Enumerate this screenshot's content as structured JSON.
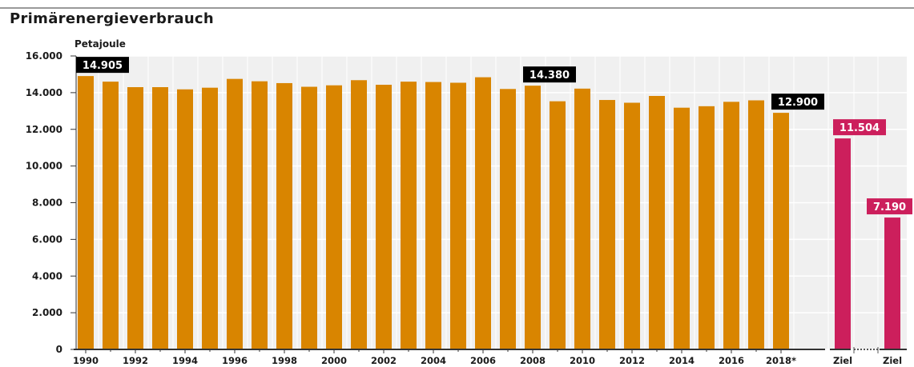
{
  "title": "Primärenergieverbrauch",
  "unit_label": "Petajoule",
  "colors": {
    "history": "#d98500",
    "target": "#cc1f5c",
    "callout_dark": "#000000",
    "grid": "#ffffff",
    "plot_bg": "#f0f0f0"
  },
  "chart_data": {
    "type": "bar",
    "ylabel": "Petajoule",
    "ylim": [
      0,
      16000
    ],
    "yticks": [
      "0",
      "2.000",
      "4.000",
      "6.000",
      "8.000",
      "10.000",
      "12.000",
      "14.000",
      "16.000"
    ],
    "grid": true,
    "series": [
      {
        "values": [
          14905,
          14600,
          14300,
          14300,
          14180,
          14270,
          14750,
          14620,
          14520,
          14320,
          14400,
          14680,
          14430,
          14600,
          14580,
          14540,
          14840,
          14200,
          14380,
          13530,
          14220,
          13600,
          13450,
          13820,
          13180,
          13260,
          13500,
          13580,
          12900
        ]
      },
      {
        "values": [
          11504,
          7190
        ]
      }
    ],
    "x_labels": [
      "1990",
      "1992",
      "1994",
      "1996",
      "1998",
      "2000",
      "2002",
      "2004",
      "2006",
      "2008",
      "2010",
      "2012",
      "2014",
      "2016",
      "2018*",
      "Ziel",
      "Ziel"
    ],
    "callouts": [
      {
        "text": "14.905",
        "bar": 0,
        "style": "dark"
      },
      {
        "text": "14.380",
        "bar": 18,
        "style": "dark"
      },
      {
        "text": "12.900",
        "bar": 28,
        "style": "dark"
      },
      {
        "text": "11.504",
        "bar": "target-0",
        "style": "target"
      },
      {
        "text": "7.190",
        "bar": "target-1",
        "style": "target"
      }
    ]
  }
}
